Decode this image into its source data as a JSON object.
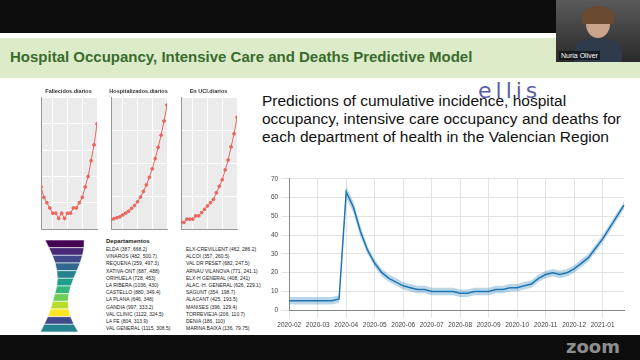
{
  "slide": {
    "title": "Hospital Occupancy, Intensive Care and Deaths Predictive Model",
    "text": "Predictions of cumulative incidence, hospital occupancy, intensive care occupancy and deaths for each department of health in the Valencian Region",
    "logo": "ellis",
    "speaker": "Nuria Oliver",
    "watermark": "zoom"
  },
  "map": {
    "legend_title": "Departamentos",
    "departments": [
      "ELDA (387, 668.2)",
      "VINAROS (482, 500.7)",
      "REQUENA (259, 497.3)",
      "XATIVA-ONT (687, 488)",
      "ORIHUELA (728, 453)",
      "LA RIBERA (1036, 430)",
      "CASTELLO (880, 349.4)",
      "LA PLANA (646, 348)",
      "GANDIA (997, 333.2)",
      "VAL CLINIC (1122, 324.5)",
      "LA FE (804, 313.9)",
      "VAL GENERAL (1115, 308.5)",
      "ELX-CREVILLENT (462, 286.2)",
      "ALCOI (357, 260.5)",
      "VAL DR PESET (682, 247.5)",
      "ARNAU VILANOVA (771, 241.1)",
      "ELX-H GENERAL (408, 241)",
      "ALAC.-H. GENERAL (626, 229.1)",
      "SAGUNT (354, 198.7)",
      "ALACANT (425, 193.5)",
      "MANISES (396, 129.4)",
      "TORREVIEJA (206, 110.7)",
      "DENIA (186, 110)",
      "MARINA BAIXA (136, 79.75)"
    ],
    "colors": [
      "#440154",
      "#482878",
      "#3e4a89",
      "#31688e",
      "#26828e",
      "#1f9e89",
      "#35b779",
      "#6ece58",
      "#b5de2b",
      "#fde725",
      "#3e4a89",
      "#26828e"
    ]
  },
  "chart_data": [
    {
      "type": "line",
      "title": "Fallecidos.diarios",
      "x": [
        1,
        2,
        3,
        4,
        5,
        6,
        7,
        8,
        9,
        10,
        11,
        12,
        13,
        14,
        15,
        16,
        17,
        18,
        19,
        20
      ],
      "xlim": [
        1,
        20
      ],
      "xticks": [
        5,
        10,
        15,
        20
      ],
      "values": [
        8,
        6,
        5,
        4,
        3,
        3,
        2,
        3,
        2,
        3,
        3,
        4,
        4,
        5,
        6,
        8,
        10,
        13,
        16,
        20
      ],
      "ylim": [
        0,
        25
      ],
      "yticks": [
        0,
        5,
        10,
        15,
        20,
        25
      ],
      "color": "#e8675f",
      "marker": "circle",
      "grid": true,
      "tick_labels": false
    },
    {
      "type": "line",
      "title": "Hospitalizados.diarios",
      "x": [
        1,
        2,
        3,
        4,
        5,
        6,
        7,
        8,
        9,
        10,
        11,
        12,
        13,
        14,
        15,
        16,
        17,
        18,
        19,
        20
      ],
      "xlim": [
        1,
        20
      ],
      "xticks": [
        5,
        10,
        15,
        20
      ],
      "values": [
        10,
        11,
        12,
        13,
        15,
        17,
        19,
        22,
        25,
        29,
        34,
        40,
        47,
        55,
        64,
        75,
        87,
        100,
        115,
        132
      ],
      "ylim": [
        0,
        140
      ],
      "yticks": [
        0,
        35,
        70,
        105,
        140
      ],
      "color": "#e8675f",
      "marker": "circle",
      "grid": true,
      "tick_labels": false
    },
    {
      "type": "line",
      "title": "En UCI.diarios",
      "x": [
        1,
        2,
        3,
        4,
        5,
        6,
        7,
        8,
        9,
        10,
        11,
        12,
        13,
        14,
        15,
        16,
        17,
        18,
        19,
        20
      ],
      "xlim": [
        1,
        20
      ],
      "xticks": [
        5,
        10,
        15,
        20
      ],
      "values": [
        2,
        2,
        3,
        3,
        3,
        4,
        4,
        5,
        6,
        7,
        8,
        9,
        11,
        13,
        15,
        18,
        21,
        25,
        29,
        34
      ],
      "ylim": [
        0,
        40
      ],
      "yticks": [
        0,
        10,
        20,
        30,
        40
      ],
      "color": "#e8675f",
      "marker": "circle",
      "grid": true,
      "tick_labels": false
    },
    {
      "type": "line",
      "categories": [
        "2020-02",
        null,
        null,
        null,
        "2020-03",
        null,
        null,
        null,
        "2020-04",
        null,
        null,
        null,
        "2020-05",
        null,
        null,
        null,
        "2020-06",
        null,
        null,
        null,
        "2020-07",
        null,
        null,
        null,
        "2020-08",
        null,
        null,
        null,
        "2020-09",
        null,
        null,
        null,
        "2020-10",
        null,
        null,
        null,
        "2020-11",
        null,
        null,
        null,
        "2020-12",
        null,
        null,
        null,
        "2021-01",
        null,
        null,
        null
      ],
      "values": [
        5,
        5,
        5,
        5,
        5,
        5,
        5,
        6,
        63,
        55,
        42,
        32,
        25,
        20,
        17,
        15,
        13,
        12,
        11,
        11,
        10,
        10,
        10,
        10,
        9,
        9,
        10,
        10,
        10,
        11,
        11,
        12,
        12,
        13,
        14,
        17,
        19,
        20,
        19,
        20,
        22,
        25,
        28,
        33,
        38,
        44,
        50,
        56
      ],
      "lower": [
        3,
        3,
        3,
        3,
        3,
        3,
        3,
        4,
        60,
        52,
        39,
        30,
        23,
        18,
        15,
        13,
        11,
        10,
        9,
        9,
        8,
        8,
        8,
        8,
        7,
        7,
        8,
        8,
        8,
        9,
        9,
        10,
        10,
        11,
        12,
        15,
        17,
        18,
        17,
        18,
        20,
        23,
        26,
        31,
        36,
        42,
        48,
        54
      ],
      "upper": [
        7,
        7,
        7,
        7,
        7,
        7,
        7,
        8,
        66,
        58,
        45,
        34,
        27,
        22,
        19,
        17,
        15,
        14,
        13,
        13,
        12,
        12,
        12,
        12,
        11,
        11,
        12,
        12,
        12,
        13,
        13,
        14,
        14,
        15,
        16,
        19,
        21,
        22,
        21,
        22,
        24,
        27,
        30,
        35,
        40,
        46,
        52,
        58
      ],
      "color": "#1f77b4",
      "ylim": [
        0,
        70
      ],
      "yticks": [
        0,
        10,
        20,
        30,
        40,
        50,
        60,
        70
      ],
      "grid": true,
      "line_style": "solid"
    }
  ]
}
